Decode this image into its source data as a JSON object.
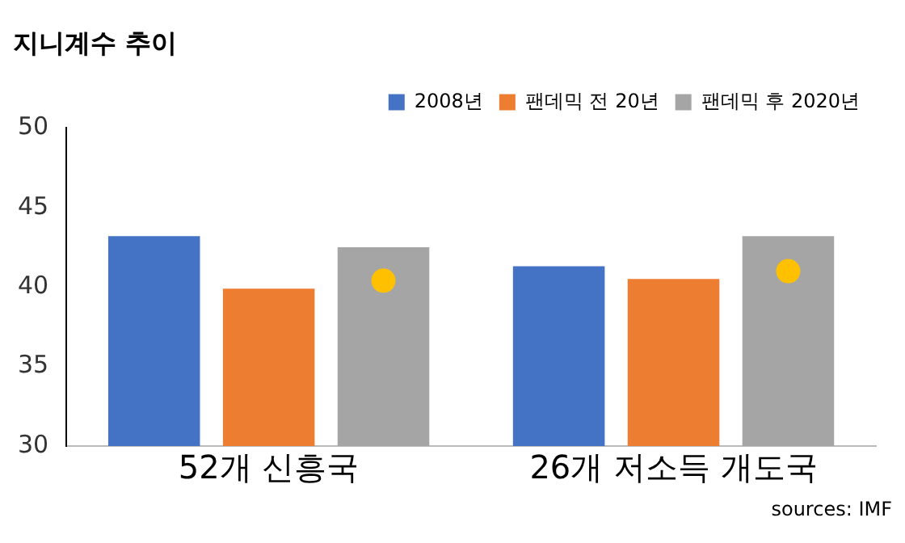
{
  "chart_data": {
    "type": "bar",
    "title": "지니계수 추이",
    "categories": [
      "52개 신흥국",
      "26개 저소득 개도국"
    ],
    "series": [
      {
        "name": "2008년",
        "color": "#4472c4",
        "values": [
          43.2,
          41.3
        ]
      },
      {
        "name": "팬데믹 전 20년",
        "color": "#ed7d31",
        "values": [
          39.9,
          40.5
        ]
      },
      {
        "name": "팬데믹 후 2020년",
        "color": "#a5a5a5",
        "values": [
          42.5,
          43.2
        ]
      },
      {
        "type": "scatter",
        "color": "#ffc000",
        "x": [
          "52개 신흥국",
          "26개 저소득 개도국"
        ],
        "values": [
          40.4,
          41.0
        ]
      }
    ],
    "ylim": [
      30,
      50
    ],
    "yticks": [
      30,
      35,
      40,
      45,
      50
    ],
    "grid": false,
    "legend": "top right",
    "marker": "circle",
    "annotations": [
      "sources: IMF"
    ]
  }
}
